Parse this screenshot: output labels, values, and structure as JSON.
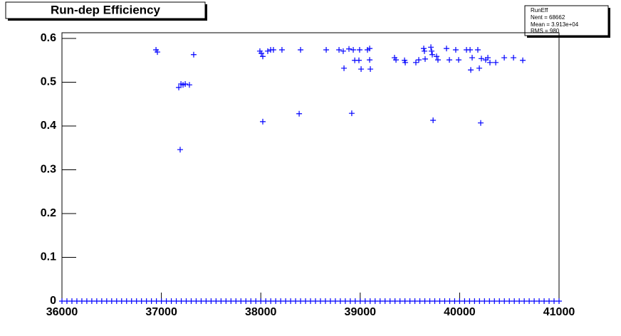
{
  "chart_data": {
    "type": "scatter",
    "title": "Run-dep Efficiency",
    "color": "#0000ff",
    "stats": {
      "title": "RunEff",
      "lines": [
        "Nent = 68662",
        "Mean = 3.913e+04",
        "RMS =   980"
      ]
    },
    "x": [
      36946,
      36960,
      37325,
      37175,
      37197,
      37218,
      37240,
      37282,
      37189,
      37991,
      38006,
      38020,
      38070,
      38099,
      38127,
      38213,
      38020,
      38400,
      38386,
      38658,
      38787,
      38829,
      38837,
      38887,
      38930,
      38945,
      38987,
      38994,
      39009,
      38915,
      39073,
      39095,
      39095,
      39102,
      39345,
      39360,
      39446,
      39453,
      39560,
      39589,
      39639,
      39646,
      39653,
      39711,
      39718,
      39725,
      39733,
      39768,
      39782,
      39868,
      39897,
      39961,
      39990,
      40069,
      40105,
      40126,
      40112,
      40183,
      40198,
      40219,
      40212,
      40262,
      40284,
      40305,
      40363,
      40449,
      40542,
      40635,
      36000,
      36050,
      36100,
      36150,
      36200,
      36250,
      36300,
      36350,
      36400,
      36450,
      36500,
      36550,
      36600,
      36650,
      36700,
      36750,
      36800,
      36850,
      36900,
      36950,
      37000,
      37050,
      37100,
      37150,
      37200,
      37250,
      37300,
      37350,
      37400,
      37450,
      37500,
      37550,
      37600,
      37650,
      37700,
      37750,
      37800,
      37850,
      37900,
      37950,
      38000,
      38050,
      38100,
      38150,
      38200,
      38250,
      38300,
      38350,
      38400,
      38450,
      38500,
      38550,
      38600,
      38650,
      38700,
      38750,
      38800,
      38850,
      38900,
      38950,
      39000,
      39050,
      39100,
      39150,
      39200,
      39250,
      39300,
      39350,
      39400,
      39450,
      39500,
      39550,
      39600,
      39650,
      39700,
      39750,
      39800,
      39850,
      39900,
      39950,
      40000,
      40050,
      40100,
      40150,
      40200,
      40250,
      40300,
      40350,
      40400,
      40450,
      40500,
      40550,
      40600,
      40650,
      40700,
      40750,
      40800,
      40850,
      40900,
      40950,
      41000
    ],
    "values": [
      0.574,
      0.569,
      0.563,
      0.488,
      0.496,
      0.494,
      0.496,
      0.494,
      0.346,
      0.571,
      0.566,
      0.559,
      0.571,
      0.574,
      0.574,
      0.574,
      0.41,
      0.574,
      0.428,
      0.574,
      0.574,
      0.571,
      0.532,
      0.576,
      0.574,
      0.55,
      0.55,
      0.574,
      0.53,
      0.429,
      0.574,
      0.577,
      0.551,
      0.53,
      0.556,
      0.551,
      0.55,
      0.545,
      0.545,
      0.551,
      0.577,
      0.571,
      0.553,
      0.58,
      0.571,
      0.563,
      0.413,
      0.559,
      0.551,
      0.577,
      0.551,
      0.574,
      0.551,
      0.574,
      0.574,
      0.556,
      0.528,
      0.574,
      0.532,
      0.554,
      0.407,
      0.551,
      0.556,
      0.545,
      0.545,
      0.556,
      0.556,
      0.55,
      0,
      0,
      0,
      0,
      0,
      0,
      0,
      0,
      0,
      0,
      0,
      0,
      0,
      0,
      0,
      0,
      0,
      0,
      0,
      0,
      0,
      0,
      0,
      0,
      0,
      0,
      0,
      0,
      0,
      0,
      0,
      0,
      0,
      0,
      0,
      0,
      0,
      0,
      0,
      0,
      0,
      0,
      0,
      0,
      0,
      0,
      0,
      0,
      0,
      0,
      0,
      0,
      0,
      0,
      0,
      0,
      0,
      0,
      0,
      0,
      0,
      0,
      0,
      0,
      0,
      0,
      0,
      0,
      0,
      0,
      0,
      0,
      0,
      0,
      0,
      0,
      0,
      0,
      0,
      0,
      0,
      0,
      0,
      0,
      0,
      0,
      0,
      0,
      0,
      0,
      0,
      0,
      0,
      0,
      0,
      0,
      0,
      0,
      0,
      0,
      0
    ],
    "xlim": [
      36000,
      41000
    ],
    "xticks": [
      36000,
      37000,
      38000,
      39000,
      40000,
      41000
    ],
    "ylim": [
      0,
      0.6
    ],
    "yticks": [
      0,
      0.1,
      0.2,
      0.3,
      0.4,
      0.5,
      0.6
    ]
  }
}
